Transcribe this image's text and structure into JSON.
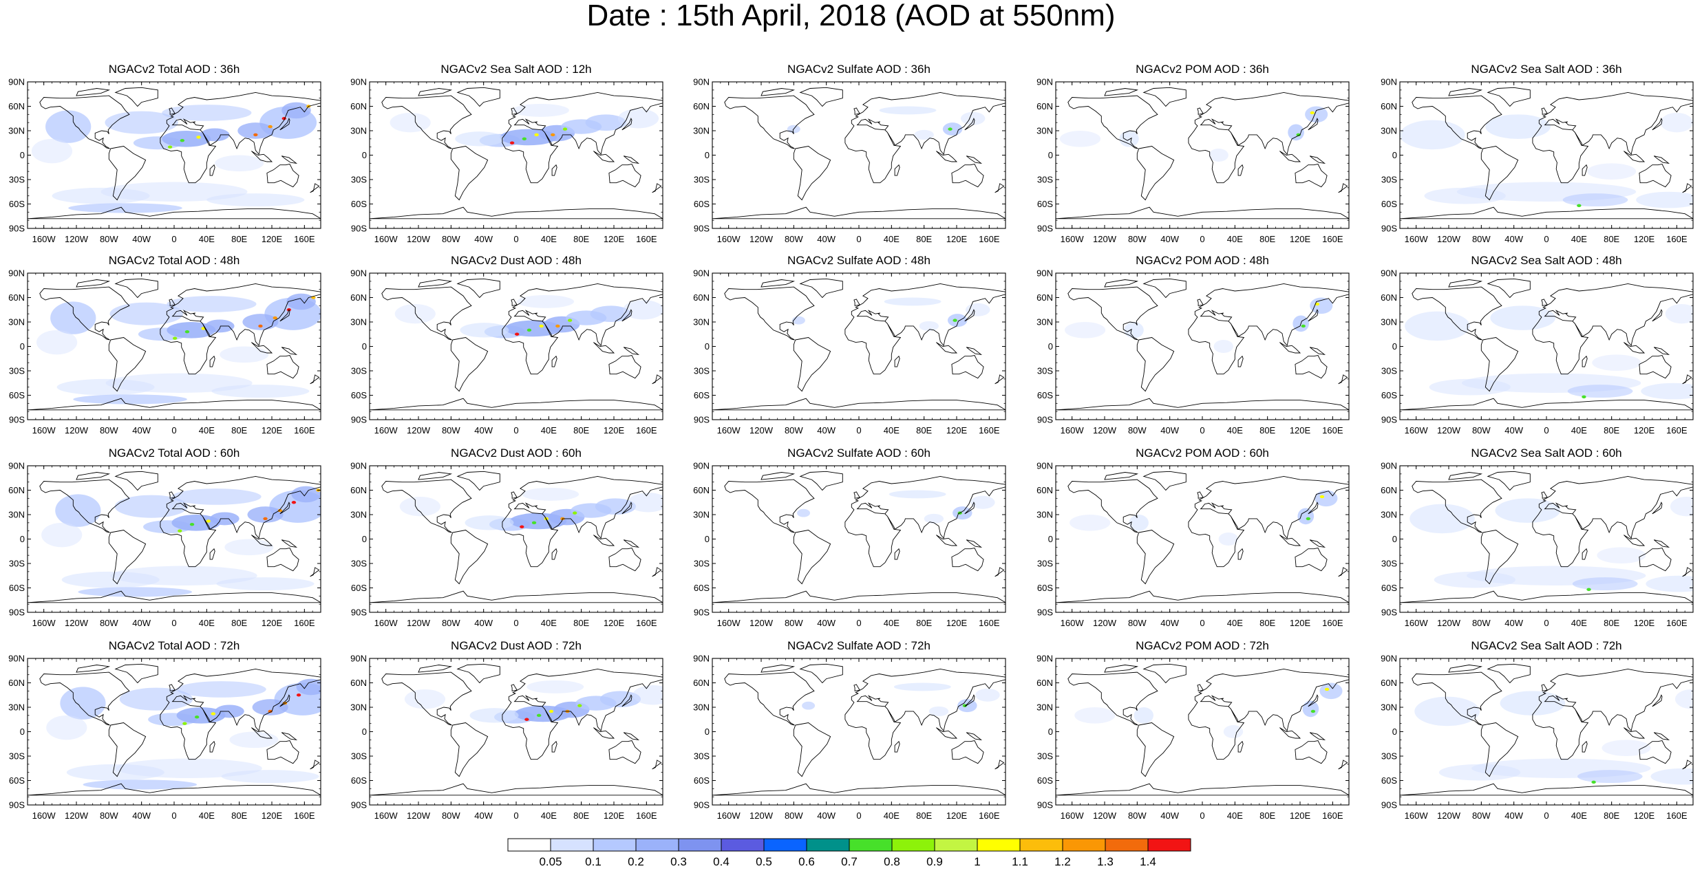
{
  "title": "Date : 15th April, 2018 (AOD at 550nm)",
  "lat_labels": [
    "90N",
    "60N",
    "30N",
    "0",
    "30S",
    "60S",
    "90S"
  ],
  "lon_labels": [
    "160W",
    "120W",
    "80W",
    "40W",
    "0",
    "40E",
    "80E",
    "120E",
    "160E"
  ],
  "panels": [
    [
      "NGACv2 Total AOD : 36h",
      "NGACv2 Sea Salt  AOD : 12h",
      "NGACv2 Sulfate AOD : 36h",
      "NGACv2 POM AOD : 36h",
      "NGACv2 Sea Salt AOD : 36h"
    ],
    [
      "NGACv2 Total AOD : 48h",
      "NGACv2 Dust AOD : 48h",
      "NGACv2 Sulfate AOD : 48h",
      "NGACv2 POM AOD : 48h",
      "NGACv2 Sea Salt AOD : 48h"
    ],
    [
      "NGACv2 Total AOD : 60h",
      "NGACv2 Dust AOD : 60h",
      "NGACv2 Sulfate AOD : 60h",
      "NGACv2 POM AOD : 60h",
      "NGACv2 Sea Salt AOD : 60h"
    ],
    [
      "NGACv2 Total AOD : 72h",
      "NGACv2 Dust AOD : 72h",
      "NGACv2 Sulfate AOD : 72h",
      "NGACv2 POM AOD : 72h",
      "NGACv2 Sea Salt  AOD : 72h"
    ]
  ],
  "colorbar": {
    "labels": [
      "0.05",
      "0.1",
      "0.2",
      "0.3",
      "0.4",
      "0.5",
      "0.6",
      "0.7",
      "0.8",
      "0.9",
      "1",
      "1.1",
      "1.2",
      "1.3",
      "1.4"
    ],
    "colors": [
      "#ffffff",
      "#d6e2ff",
      "#b5c9ff",
      "#9bb2fa",
      "#7e93f0",
      "#5b5be0",
      "#0a64ff",
      "#00918a",
      "#47e02a",
      "#8df20a",
      "#c3f542",
      "#ffff00",
      "#fcbd0b",
      "#fa9705",
      "#f26b0c",
      "#f21414"
    ]
  }
}
